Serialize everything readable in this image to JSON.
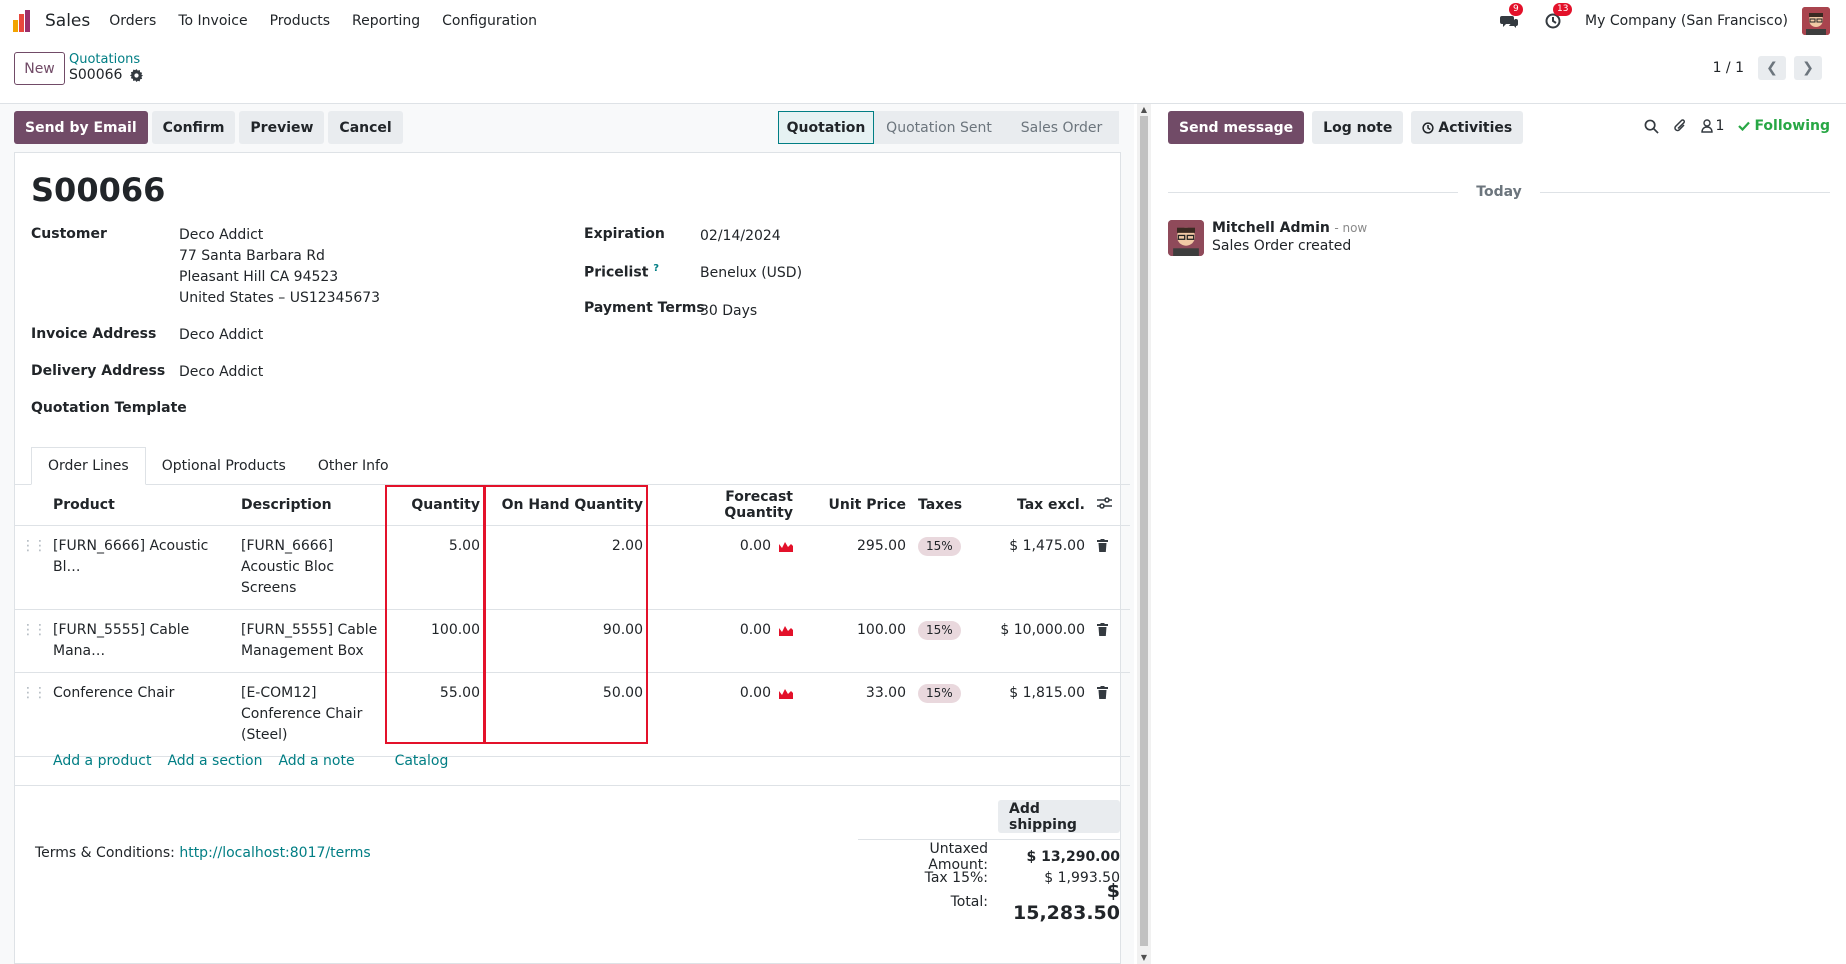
{
  "app": {
    "name": "Sales"
  },
  "nav": {
    "menu": [
      "Orders",
      "To Invoice",
      "Products",
      "Reporting",
      "Configuration"
    ]
  },
  "systray": {
    "messages_count": "9",
    "activities_count": "13",
    "company": "My Company (San Francisco)"
  },
  "control": {
    "new_label": "New",
    "breadcrumb_parent": "Quotations",
    "breadcrumb_current": "S00066",
    "pager": "1 / 1"
  },
  "actions": {
    "send_by_email": "Send by Email",
    "confirm": "Confirm",
    "preview": "Preview",
    "cancel": "Cancel"
  },
  "status_stages": [
    "Quotation",
    "Quotation Sent",
    "Sales Order"
  ],
  "status_active": "Quotation",
  "record": {
    "name": "S00066",
    "customer_label": "Customer",
    "customer_lines": [
      "Deco Addict",
      "77 Santa Barbara Rd",
      "Pleasant Hill CA 94523",
      "United States – US12345673"
    ],
    "invoice_address_label": "Invoice Address",
    "invoice_address": "Deco Addict",
    "delivery_address_label": "Delivery Address",
    "delivery_address": "Deco Addict",
    "quotation_template_label": "Quotation Template",
    "expiration_label": "Expiration",
    "expiration": "02/14/2024",
    "pricelist_label": "Pricelist",
    "pricelist_help": "?",
    "pricelist": "Benelux (USD)",
    "payment_terms_label": "Payment Terms",
    "payment_terms": "30 Days"
  },
  "tabs": [
    "Order Lines",
    "Optional Products",
    "Other Info"
  ],
  "order_lines": {
    "columns": [
      "Product",
      "Description",
      "Quantity",
      "On Hand Quantity",
      "Forecast Quantity",
      "Unit Price",
      "Taxes",
      "Tax excl."
    ],
    "rows": [
      {
        "product": "[FURN_6666] Acoustic Bl…",
        "description": [
          "[FURN_6666]",
          "Acoustic Bloc",
          "Screens"
        ],
        "quantity": "5.00",
        "on_hand": "2.00",
        "forecast": "0.00",
        "unit_price": "295.00",
        "tax": "15%",
        "subtotal": "$ 1,475.00"
      },
      {
        "product": "[FURN_5555] Cable Mana…",
        "description": [
          "[FURN_5555] Cable",
          "Management Box"
        ],
        "quantity": "100.00",
        "on_hand": "90.00",
        "forecast": "0.00",
        "unit_price": "100.00",
        "tax": "15%",
        "subtotal": "$ 10,000.00"
      },
      {
        "product": "Conference Chair",
        "description": [
          "[E-COM12]",
          "Conference Chair",
          "(Steel)"
        ],
        "quantity": "55.00",
        "on_hand": "50.00",
        "forecast": "0.00",
        "unit_price": "33.00",
        "tax": "15%",
        "subtotal": "$ 1,815.00"
      }
    ]
  },
  "add_links": {
    "product": "Add a product",
    "section": "Add a section",
    "note": "Add a note",
    "catalog": "Catalog"
  },
  "add_shipping": "Add shipping",
  "terms": {
    "label": "Terms & Conditions:",
    "url": "http://localhost:8017/terms"
  },
  "totals": {
    "untaxed_label": "Untaxed Amount:",
    "untaxed": "$ 13,290.00",
    "tax_label": "Tax 15%:",
    "tax": "$ 1,993.50",
    "total_label": "Total:",
    "total": "$ 15,283.50"
  },
  "chatter": {
    "send_message": "Send message",
    "log_note": "Log note",
    "activities": "Activities",
    "followers_count": "1",
    "following": "Following",
    "day_separator": "Today",
    "message": {
      "author": "Mitchell Admin",
      "time": "- now",
      "body": "Sales Order created"
    }
  },
  "colors": {
    "brand": "#714b67",
    "link": "#017e84",
    "badge": "#e3112a",
    "following": "#28a745",
    "highlight": "#e3112a"
  },
  "icons": [
    "chat-icon",
    "clock-icon",
    "gear-icon",
    "drag-handle-icon",
    "forecast-chart-icon",
    "trash-icon",
    "column-settings-icon",
    "search-icon",
    "paperclip-icon",
    "follower-icon",
    "check-icon",
    "chevron-left-icon",
    "chevron-right-icon"
  ]
}
